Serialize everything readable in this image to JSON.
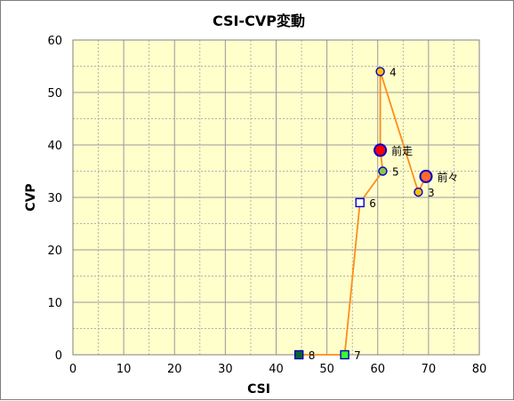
{
  "chart_data": {
    "type": "scatter",
    "title": "CSI-CVP変動",
    "xlabel": "CSI",
    "ylabel": "CVP",
    "xlim": [
      0,
      80
    ],
    "ylim": [
      0,
      60
    ],
    "xticks": [
      0,
      10,
      20,
      30,
      40,
      50,
      60,
      70,
      80
    ],
    "yticks": [
      0,
      10,
      20,
      30,
      40,
      50,
      60
    ],
    "minor_grid_step": 5,
    "grid": true,
    "line_color": "#ff8c1a",
    "plot_bg": "#ffffcc",
    "grid_color": "#999999",
    "points": [
      {
        "label": "8",
        "x": 44.5,
        "y": 0,
        "shape": "square",
        "fill": "#006633",
        "stroke": "#0000aa",
        "size": "small"
      },
      {
        "label": "7",
        "x": 53.5,
        "y": 0,
        "shape": "square",
        "fill": "#33ff33",
        "stroke": "#0000aa",
        "size": "small"
      },
      {
        "label": "6",
        "x": 56.5,
        "y": 29,
        "shape": "square",
        "fill": "#ffffff",
        "stroke": "#0000cc",
        "size": "small"
      },
      {
        "label": "5",
        "x": 61,
        "y": 35,
        "shape": "circle",
        "fill": "#8cc63f",
        "stroke": "#0000cc",
        "size": "small"
      },
      {
        "label": "前走",
        "x": 60.5,
        "y": 39,
        "shape": "circle",
        "fill": "#ff0000",
        "stroke": "#0000cc",
        "size": "large"
      },
      {
        "label": "4",
        "x": 60.5,
        "y": 54,
        "shape": "circle",
        "fill": "#ffc000",
        "stroke": "#0000cc",
        "size": "small"
      },
      {
        "label": "3",
        "x": 68,
        "y": 31,
        "shape": "circle",
        "fill": "#ffc000",
        "stroke": "#0000cc",
        "size": "small"
      },
      {
        "label": "前々",
        "x": 69.5,
        "y": 34,
        "shape": "circle",
        "fill": "#ff6a2a",
        "stroke": "#0000cc",
        "size": "large"
      }
    ],
    "path_order": [
      "8",
      "7",
      "6",
      "5",
      "前走",
      "4",
      "3",
      "前々"
    ]
  }
}
